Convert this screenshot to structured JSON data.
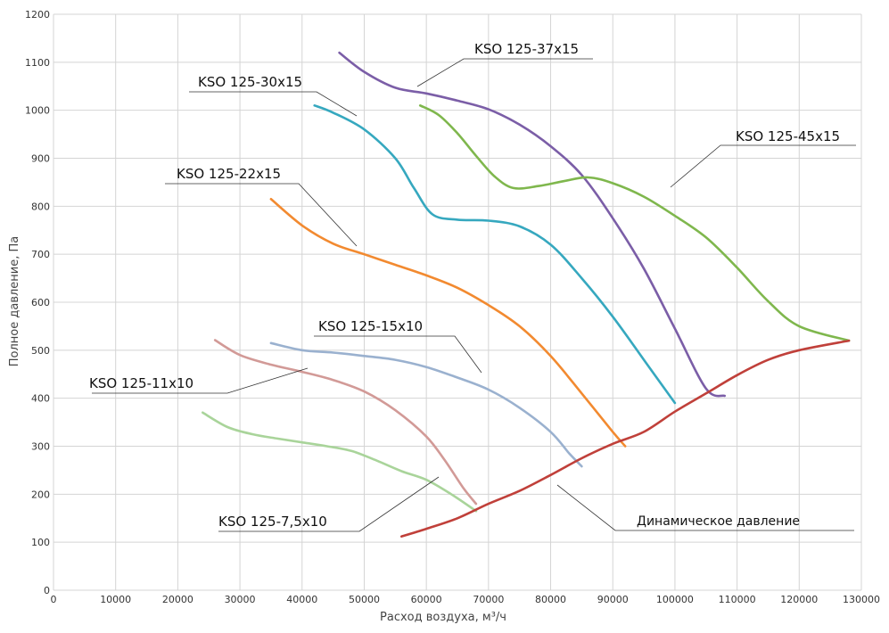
{
  "chart_data": {
    "type": "line",
    "xlabel": "Расход воздуха, м³/ч",
    "ylabel": "Полное давление, Па",
    "xlim": [
      0,
      130000
    ],
    "ylim": [
      0,
      1200
    ],
    "xticks": [
      "0",
      "10000",
      "20000",
      "30000",
      "40000",
      "50000",
      "60000",
      "70000",
      "80000",
      "90000",
      "100000",
      "110000",
      "120000",
      "130000"
    ],
    "yticks": [
      "0",
      "100",
      "200",
      "300",
      "400",
      "500",
      "600",
      "700",
      "800",
      "900",
      "1000",
      "1100",
      "1200"
    ],
    "grid": true,
    "series": [
      {
        "name": "KSO 125-37x15",
        "color": "#7b5ea7",
        "points": [
          [
            46000,
            1120
          ],
          [
            50000,
            1080
          ],
          [
            55000,
            1047
          ],
          [
            60000,
            1035
          ],
          [
            65000,
            1020
          ],
          [
            70000,
            1002
          ],
          [
            75000,
            970
          ],
          [
            80000,
            925
          ],
          [
            85000,
            865
          ],
          [
            90000,
            775
          ],
          [
            95000,
            670
          ],
          [
            100000,
            545
          ],
          [
            105000,
            420
          ],
          [
            108000,
            405
          ]
        ]
      },
      {
        "name": "KSO 125-30x15",
        "color": "#36a8bf",
        "points": [
          [
            42000,
            1010
          ],
          [
            45000,
            995
          ],
          [
            50000,
            960
          ],
          [
            55000,
            900
          ],
          [
            58000,
            838
          ],
          [
            61000,
            783
          ],
          [
            65000,
            772
          ],
          [
            70000,
            770
          ],
          [
            75000,
            758
          ],
          [
            80000,
            720
          ],
          [
            85000,
            650
          ],
          [
            90000,
            570
          ],
          [
            95000,
            480
          ],
          [
            100000,
            390
          ]
        ]
      },
      {
        "name": "KSO 125-45x15",
        "color": "#7fb74d",
        "points": [
          [
            59000,
            1010
          ],
          [
            62000,
            990
          ],
          [
            65000,
            952
          ],
          [
            68000,
            905
          ],
          [
            71000,
            862
          ],
          [
            74000,
            838
          ],
          [
            78000,
            842
          ],
          [
            82000,
            852
          ],
          [
            86000,
            860
          ],
          [
            90000,
            848
          ],
          [
            95000,
            820
          ],
          [
            100000,
            780
          ],
          [
            105000,
            735
          ],
          [
            110000,
            672
          ],
          [
            115000,
            602
          ],
          [
            120000,
            550
          ],
          [
            128000,
            520
          ]
        ]
      },
      {
        "name": "KSO 125-22x15",
        "color": "#f28a30",
        "points": [
          [
            35000,
            815
          ],
          [
            40000,
            760
          ],
          [
            45000,
            722
          ],
          [
            50000,
            700
          ],
          [
            55000,
            678
          ],
          [
            60000,
            656
          ],
          [
            65000,
            630
          ],
          [
            70000,
            594
          ],
          [
            75000,
            550
          ],
          [
            80000,
            488
          ],
          [
            85000,
            410
          ],
          [
            90000,
            330
          ],
          [
            92000,
            300
          ]
        ]
      },
      {
        "name": "KSO 125-15x10",
        "color": "#9ab1cf",
        "points": [
          [
            35000,
            515
          ],
          [
            40000,
            500
          ],
          [
            45000,
            495
          ],
          [
            50000,
            488
          ],
          [
            55000,
            480
          ],
          [
            60000,
            465
          ],
          [
            65000,
            443
          ],
          [
            70000,
            418
          ],
          [
            75000,
            380
          ],
          [
            80000,
            330
          ],
          [
            83000,
            285
          ],
          [
            85000,
            258
          ]
        ]
      },
      {
        "name": "KSO 125-11x10",
        "color": "#d29a97",
        "points": [
          [
            26000,
            521
          ],
          [
            30000,
            490
          ],
          [
            35000,
            470
          ],
          [
            40000,
            455
          ],
          [
            45000,
            438
          ],
          [
            50000,
            414
          ],
          [
            55000,
            375
          ],
          [
            60000,
            320
          ],
          [
            63000,
            270
          ],
          [
            66000,
            212
          ],
          [
            68000,
            180
          ]
        ]
      },
      {
        "name": "KSO 125-7,5x10",
        "color": "#a9d49a",
        "points": [
          [
            24000,
            370
          ],
          [
            28000,
            340
          ],
          [
            32000,
            325
          ],
          [
            36000,
            316
          ],
          [
            40000,
            308
          ],
          [
            44000,
            300
          ],
          [
            48000,
            290
          ],
          [
            52000,
            270
          ],
          [
            56000,
            248
          ],
          [
            60000,
            230
          ],
          [
            64000,
            200
          ],
          [
            68000,
            165
          ]
        ]
      },
      {
        "name": "Динамическое давление",
        "color": "#c0403a",
        "points": [
          [
            56000,
            112
          ],
          [
            60000,
            128
          ],
          [
            65000,
            150
          ],
          [
            70000,
            180
          ],
          [
            75000,
            207
          ],
          [
            80000,
            240
          ],
          [
            85000,
            275
          ],
          [
            90000,
            305
          ],
          [
            95000,
            330
          ],
          [
            100000,
            372
          ],
          [
            105000,
            410
          ],
          [
            110000,
            448
          ],
          [
            115000,
            480
          ],
          [
            120000,
            500
          ],
          [
            128000,
            520
          ]
        ]
      }
    ]
  },
  "annotations": {
    "kso_37x15": "KSO 125-37x15",
    "kso_30x15": "KSO 125-30x15",
    "kso_45x15": "KSO 125-45x15",
    "kso_22x15": "KSO 125-22x15",
    "kso_15x10": "KSO 125-15x10",
    "kso_11x10": "KSO 125-11x10",
    "kso_7_5x10": "KSO 125-7,5x10",
    "dynamic_pressure": "Динамическое давление"
  }
}
